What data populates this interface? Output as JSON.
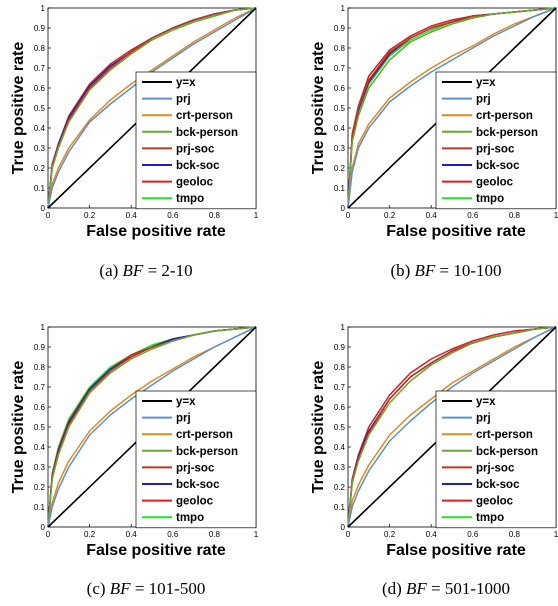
{
  "chart_data": [
    {
      "type": "line",
      "caption": "(a) BF = 2-10",
      "caption_parts": {
        "prefix": "(a) ",
        "var": "BF",
        "rest": " = 2-10"
      },
      "xlabel": "False positive rate",
      "ylabel": "True positive rate",
      "xlim": [
        0,
        1
      ],
      "ylim": [
        0,
        1
      ],
      "xticks": [
        "0",
        "0.2",
        "0.4",
        "0.6",
        "0.8",
        "1"
      ],
      "yticks": [
        "0",
        "0.1",
        "0.2",
        "0.3",
        "0.4",
        "0.5",
        "0.6",
        "0.7",
        "0.8",
        "0.9",
        "1"
      ],
      "legend_position": "lower-right",
      "series": [
        {
          "name": "y=x",
          "color": "#000000",
          "x": [
            0,
            1
          ],
          "y": [
            0,
            1
          ]
        },
        {
          "name": "prj",
          "color": "#5b8fd0",
          "x": [
            0,
            0.02,
            0.05,
            0.1,
            0.2,
            0.3,
            0.4,
            0.5,
            0.6,
            0.7,
            0.8,
            0.9,
            1
          ],
          "y": [
            0,
            0.1,
            0.18,
            0.28,
            0.43,
            0.52,
            0.6,
            0.68,
            0.75,
            0.82,
            0.88,
            0.94,
            1
          ]
        },
        {
          "name": "crt-person",
          "color": "#e08a1e",
          "x": [
            0,
            0.02,
            0.05,
            0.1,
            0.2,
            0.3,
            0.4,
            0.5,
            0.6,
            0.7,
            0.8,
            0.9,
            1
          ],
          "y": [
            0,
            0.12,
            0.2,
            0.3,
            0.44,
            0.54,
            0.62,
            0.69,
            0.76,
            0.83,
            0.89,
            0.95,
            1
          ]
        },
        {
          "name": "bck-person",
          "color": "#68a734",
          "x": [
            0,
            0.02,
            0.05,
            0.1,
            0.2,
            0.3,
            0.4,
            0.5,
            0.6,
            0.7,
            0.8,
            0.9,
            1
          ],
          "y": [
            0,
            0.2,
            0.3,
            0.43,
            0.59,
            0.69,
            0.77,
            0.84,
            0.89,
            0.93,
            0.96,
            0.99,
            1
          ]
        },
        {
          "name": "prj-soc",
          "color": "#b53a23",
          "x": [
            0,
            0.02,
            0.05,
            0.1,
            0.2,
            0.3,
            0.4,
            0.5,
            0.6,
            0.7,
            0.8,
            0.9,
            1
          ],
          "y": [
            0,
            0.21,
            0.31,
            0.44,
            0.6,
            0.7,
            0.78,
            0.85,
            0.9,
            0.94,
            0.97,
            0.99,
            1
          ]
        },
        {
          "name": "bck-soc",
          "color": "#1f1fbf",
          "x": [
            0,
            0.02,
            0.05,
            0.1,
            0.2,
            0.3,
            0.4,
            0.5,
            0.6,
            0.7,
            0.8,
            0.9,
            1
          ],
          "y": [
            0,
            0.21,
            0.32,
            0.45,
            0.61,
            0.71,
            0.78,
            0.85,
            0.9,
            0.94,
            0.97,
            0.99,
            1
          ]
        },
        {
          "name": "geoloc",
          "color": "#e31a1c",
          "x": [
            0,
            0.02,
            0.05,
            0.1,
            0.2,
            0.3,
            0.4,
            0.5,
            0.6,
            0.7,
            0.8,
            0.9,
            1
          ],
          "y": [
            0,
            0.22,
            0.32,
            0.46,
            0.62,
            0.72,
            0.79,
            0.85,
            0.9,
            0.94,
            0.97,
            0.99,
            1
          ]
        },
        {
          "name": "tmpo",
          "color": "#1ee61e",
          "x": [
            0,
            0.02,
            0.05,
            0.1,
            0.2,
            0.3,
            0.4,
            0.5,
            0.6,
            0.7,
            0.8,
            0.9,
            1
          ],
          "y": [
            0,
            0.2,
            0.3,
            0.44,
            0.6,
            0.7,
            0.78,
            0.84,
            0.89,
            0.93,
            0.96,
            0.99,
            1
          ]
        }
      ]
    },
    {
      "type": "line",
      "caption": "(b) BF = 10-100",
      "caption_parts": {
        "prefix": "(b) ",
        "var": "BF",
        "rest": " = 10-100"
      },
      "xlabel": "False positive rate",
      "ylabel": "True positive rate",
      "xlim": [
        0,
        1
      ],
      "ylim": [
        0,
        1
      ],
      "xticks": [
        "0",
        "0.2",
        "0.4",
        "0.6",
        "0.8",
        "1"
      ],
      "yticks": [
        "0",
        "0.1",
        "0.2",
        "0.3",
        "0.4",
        "0.5",
        "0.6",
        "0.7",
        "0.8",
        "0.9",
        "1"
      ],
      "legend_position": "lower-right",
      "series": [
        {
          "name": "y=x",
          "color": "#000000",
          "x": [
            0,
            1
          ],
          "y": [
            0,
            1
          ]
        },
        {
          "name": "prj",
          "color": "#5b8fd0",
          "x": [
            0,
            0.02,
            0.05,
            0.1,
            0.2,
            0.3,
            0.4,
            0.5,
            0.6,
            0.7,
            0.8,
            0.9,
            1
          ],
          "y": [
            0,
            0.18,
            0.3,
            0.4,
            0.53,
            0.61,
            0.68,
            0.74,
            0.8,
            0.86,
            0.91,
            0.96,
            1
          ]
        },
        {
          "name": "crt-person",
          "color": "#e08a1e",
          "x": [
            0,
            0.02,
            0.05,
            0.1,
            0.2,
            0.3,
            0.4,
            0.5,
            0.6,
            0.7,
            0.8,
            0.9,
            1
          ],
          "y": [
            0,
            0.2,
            0.32,
            0.42,
            0.55,
            0.63,
            0.7,
            0.76,
            0.81,
            0.87,
            0.92,
            0.96,
            1
          ]
        },
        {
          "name": "bck-person",
          "color": "#68a734",
          "x": [
            0,
            0.02,
            0.05,
            0.1,
            0.2,
            0.3,
            0.4,
            0.5,
            0.6,
            0.7,
            0.8,
            0.9,
            1
          ],
          "y": [
            0,
            0.33,
            0.46,
            0.6,
            0.74,
            0.83,
            0.88,
            0.92,
            0.95,
            0.97,
            0.98,
            0.99,
            1
          ]
        },
        {
          "name": "prj-soc",
          "color": "#b53a23",
          "x": [
            0,
            0.02,
            0.05,
            0.1,
            0.2,
            0.3,
            0.4,
            0.5,
            0.6,
            0.7,
            0.8,
            0.9,
            1
          ],
          "y": [
            0,
            0.36,
            0.5,
            0.64,
            0.78,
            0.85,
            0.9,
            0.93,
            0.96,
            0.97,
            0.98,
            0.99,
            1
          ]
        },
        {
          "name": "bck-soc",
          "color": "#1f1fbf",
          "x": [
            0,
            0.02,
            0.05,
            0.1,
            0.2,
            0.3,
            0.4,
            0.5,
            0.6,
            0.7,
            0.8,
            0.9,
            1
          ],
          "y": [
            0,
            0.35,
            0.49,
            0.63,
            0.77,
            0.85,
            0.9,
            0.93,
            0.96,
            0.97,
            0.98,
            0.99,
            1
          ]
        },
        {
          "name": "geoloc",
          "color": "#e31a1c",
          "x": [
            0,
            0.02,
            0.05,
            0.1,
            0.2,
            0.3,
            0.4,
            0.5,
            0.6,
            0.7,
            0.8,
            0.9,
            1
          ],
          "y": [
            0,
            0.37,
            0.51,
            0.66,
            0.79,
            0.86,
            0.91,
            0.94,
            0.96,
            0.97,
            0.98,
            0.99,
            1
          ]
        },
        {
          "name": "tmpo",
          "color": "#1ee61e",
          "x": [
            0,
            0.02,
            0.05,
            0.1,
            0.2,
            0.3,
            0.4,
            0.5,
            0.6,
            0.7,
            0.8,
            0.9,
            1
          ],
          "y": [
            0,
            0.34,
            0.48,
            0.62,
            0.76,
            0.84,
            0.89,
            0.93,
            0.95,
            0.97,
            0.98,
            0.99,
            1
          ]
        }
      ]
    },
    {
      "type": "line",
      "caption": "(c) BF = 101-500",
      "caption_parts": {
        "prefix": "(c) ",
        "var": "BF",
        "rest": " = 101-500"
      },
      "xlabel": "False positive rate",
      "ylabel": "True positive rate",
      "xlim": [
        0,
        1
      ],
      "ylim": [
        0,
        1
      ],
      "xticks": [
        "0",
        "0.2",
        "0.4",
        "0.6",
        "0.8",
        "1"
      ],
      "yticks": [
        "0",
        "0.1",
        "0.2",
        "0.3",
        "0.4",
        "0.5",
        "0.6",
        "0.7",
        "0.8",
        "0.9",
        "1"
      ],
      "legend_position": "lower-right",
      "series": [
        {
          "name": "y=x",
          "color": "#000000",
          "x": [
            0,
            1
          ],
          "y": [
            0,
            1
          ]
        },
        {
          "name": "prj",
          "color": "#5b8fd0",
          "x": [
            0,
            0.02,
            0.05,
            0.1,
            0.2,
            0.3,
            0.4,
            0.5,
            0.6,
            0.7,
            0.8,
            0.9,
            1
          ],
          "y": [
            0,
            0.1,
            0.19,
            0.3,
            0.46,
            0.56,
            0.64,
            0.71,
            0.78,
            0.84,
            0.9,
            0.95,
            1
          ]
        },
        {
          "name": "crt-person",
          "color": "#e08a1e",
          "x": [
            0,
            0.02,
            0.05,
            0.1,
            0.2,
            0.3,
            0.4,
            0.5,
            0.6,
            0.7,
            0.8,
            0.9,
            1
          ],
          "y": [
            0,
            0.12,
            0.22,
            0.33,
            0.48,
            0.58,
            0.66,
            0.73,
            0.79,
            0.85,
            0.9,
            0.95,
            1
          ]
        },
        {
          "name": "bck-person",
          "color": "#68a734",
          "x": [
            0,
            0.02,
            0.05,
            0.1,
            0.2,
            0.3,
            0.4,
            0.5,
            0.6,
            0.7,
            0.8,
            0.9,
            1
          ],
          "y": [
            0,
            0.24,
            0.36,
            0.5,
            0.67,
            0.77,
            0.84,
            0.89,
            0.93,
            0.96,
            0.98,
            0.99,
            1
          ]
        },
        {
          "name": "prj-soc",
          "color": "#b53a23",
          "x": [
            0,
            0.02,
            0.05,
            0.1,
            0.2,
            0.3,
            0.4,
            0.5,
            0.6,
            0.7,
            0.8,
            0.9,
            1
          ],
          "y": [
            0,
            0.25,
            0.37,
            0.51,
            0.68,
            0.78,
            0.85,
            0.9,
            0.93,
            0.96,
            0.98,
            0.99,
            1
          ]
        },
        {
          "name": "bck-soc",
          "color": "#1f1fbf",
          "x": [
            0,
            0.02,
            0.05,
            0.1,
            0.2,
            0.3,
            0.4,
            0.5,
            0.6,
            0.7,
            0.8,
            0.9,
            1
          ],
          "y": [
            0,
            0.25,
            0.38,
            0.52,
            0.69,
            0.79,
            0.85,
            0.9,
            0.94,
            0.96,
            0.98,
            0.99,
            1
          ]
        },
        {
          "name": "geoloc",
          "color": "#e31a1c",
          "x": [
            0,
            0.02,
            0.05,
            0.1,
            0.2,
            0.3,
            0.4,
            0.5,
            0.6,
            0.7,
            0.8,
            0.9,
            1
          ],
          "y": [
            0,
            0.26,
            0.39,
            0.53,
            0.69,
            0.79,
            0.86,
            0.9,
            0.94,
            0.96,
            0.98,
            0.99,
            1
          ]
        },
        {
          "name": "tmpo",
          "color": "#1ee61e",
          "x": [
            0,
            0.02,
            0.05,
            0.1,
            0.2,
            0.3,
            0.4,
            0.5,
            0.6,
            0.7,
            0.8,
            0.9,
            1
          ],
          "y": [
            0,
            0.27,
            0.4,
            0.54,
            0.7,
            0.8,
            0.86,
            0.91,
            0.94,
            0.96,
            0.98,
            0.99,
            1
          ]
        }
      ]
    },
    {
      "type": "line",
      "caption": "(d) BF = 501-1000",
      "caption_parts": {
        "prefix": "(d) ",
        "var": "BF",
        "rest": " = 501-1000"
      },
      "xlabel": "False positive rate",
      "ylabel": "True positive rate",
      "xlim": [
        0,
        1
      ],
      "ylim": [
        0,
        1
      ],
      "xticks": [
        "0",
        "0.2",
        "0.4",
        "0.6",
        "0.8",
        "1"
      ],
      "yticks": [
        "0",
        "0.1",
        "0.2",
        "0.3",
        "0.4",
        "0.5",
        "0.6",
        "0.7",
        "0.8",
        "0.9",
        "1"
      ],
      "legend_position": "lower-right",
      "series": [
        {
          "name": "y=x",
          "color": "#000000",
          "x": [
            0,
            1
          ],
          "y": [
            0,
            1
          ]
        },
        {
          "name": "prj",
          "color": "#5b8fd0",
          "x": [
            0,
            0.02,
            0.05,
            0.1,
            0.2,
            0.3,
            0.4,
            0.5,
            0.6,
            0.7,
            0.8,
            0.9,
            1
          ],
          "y": [
            0,
            0.1,
            0.18,
            0.28,
            0.43,
            0.53,
            0.62,
            0.7,
            0.77,
            0.83,
            0.89,
            0.95,
            1
          ]
        },
        {
          "name": "crt-person",
          "color": "#e08a1e",
          "x": [
            0,
            0.02,
            0.05,
            0.1,
            0.2,
            0.3,
            0.4,
            0.5,
            0.6,
            0.7,
            0.8,
            0.9,
            1
          ],
          "y": [
            0,
            0.13,
            0.21,
            0.31,
            0.46,
            0.56,
            0.64,
            0.72,
            0.78,
            0.84,
            0.9,
            0.95,
            1
          ]
        },
        {
          "name": "bck-person",
          "color": "#68a734",
          "x": [
            0,
            0.02,
            0.05,
            0.1,
            0.2,
            0.3,
            0.4,
            0.5,
            0.6,
            0.7,
            0.8,
            0.9,
            1
          ],
          "y": [
            0,
            0.22,
            0.33,
            0.46,
            0.62,
            0.73,
            0.81,
            0.87,
            0.92,
            0.95,
            0.97,
            0.99,
            1
          ]
        },
        {
          "name": "prj-soc",
          "color": "#b53a23",
          "x": [
            0,
            0.02,
            0.05,
            0.1,
            0.2,
            0.3,
            0.4,
            0.5,
            0.6,
            0.7,
            0.8,
            0.9,
            1
          ],
          "y": [
            0,
            0.23,
            0.34,
            0.47,
            0.64,
            0.75,
            0.82,
            0.88,
            0.92,
            0.95,
            0.97,
            0.99,
            1
          ]
        },
        {
          "name": "bck-soc",
          "color": "#1f1fbf",
          "x": [
            0,
            0.02,
            0.05,
            0.1,
            0.2,
            0.3,
            0.4,
            0.5,
            0.6,
            0.7,
            0.8,
            0.9,
            1
          ],
          "y": [
            0,
            0.23,
            0.35,
            0.48,
            0.64,
            0.75,
            0.82,
            0.88,
            0.92,
            0.95,
            0.97,
            0.99,
            1
          ]
        },
        {
          "name": "geoloc",
          "color": "#e31a1c",
          "x": [
            0,
            0.02,
            0.05,
            0.1,
            0.2,
            0.3,
            0.4,
            0.5,
            0.6,
            0.7,
            0.8,
            0.9,
            1
          ],
          "y": [
            0,
            0.24,
            0.36,
            0.5,
            0.66,
            0.77,
            0.84,
            0.89,
            0.93,
            0.96,
            0.98,
            0.99,
            1
          ]
        },
        {
          "name": "tmpo",
          "color": "#1ee61e",
          "x": [
            0,
            0.02,
            0.05,
            0.1,
            0.2,
            0.3,
            0.4,
            0.5,
            0.6,
            0.7,
            0.8,
            0.9,
            1
          ],
          "y": [
            0,
            0.22,
            0.34,
            0.47,
            0.64,
            0.75,
            0.82,
            0.88,
            0.92,
            0.95,
            0.97,
            0.99,
            1
          ]
        }
      ]
    }
  ]
}
